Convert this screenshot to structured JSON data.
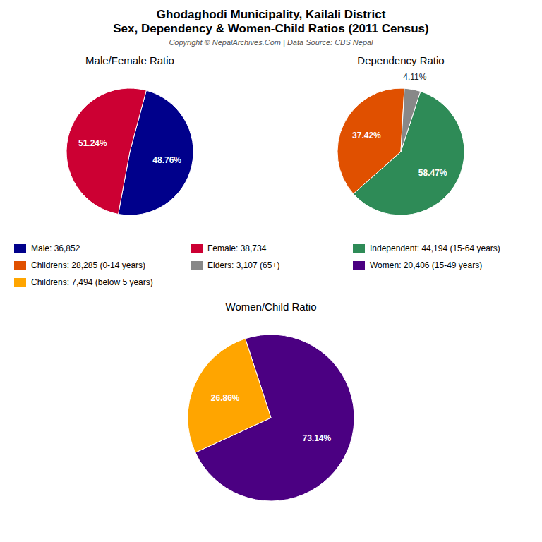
{
  "title": "Ghodaghodi Municipality, Kailali District",
  "subtitle": "Sex, Dependency & Women-Child Ratios (2011 Census)",
  "annotations": [
    "Copyright © NepalArchives.Com | Data Source: CBS Nepal"
  ],
  "chart_data": [
    {
      "type": "pie",
      "title": "Male/Female Ratio",
      "categories": [
        "Male: 36,852",
        "Female: 38,734"
      ],
      "values": [
        48.76,
        51.24
      ],
      "value_labels": [
        "48.76%",
        "51.24%"
      ],
      "colors": [
        "#00008B",
        "#CC0033"
      ],
      "data_labels": true,
      "legend": "bottom"
    },
    {
      "type": "pie",
      "title": "Dependency Ratio",
      "categories": [
        "Independent: 44,194 (15-64 years)",
        "Childrens: 28,285 (0-14 years)",
        "Elders: 3,107 (65+)"
      ],
      "values": [
        58.47,
        37.42,
        4.11
      ],
      "value_labels": [
        "58.47%",
        "37.42%",
        "4.11%"
      ],
      "colors": [
        "#2E8B57",
        "#E05000",
        "#888888"
      ],
      "data_labels": true,
      "legend": "bottom"
    },
    {
      "type": "pie",
      "title": "Women/Child Ratio",
      "categories": [
        "Women: 20,406 (15-49 years)",
        "Childrens: 7,494 (below 5 years)"
      ],
      "values": [
        73.14,
        26.86
      ],
      "value_labels": [
        "73.14%",
        "26.86%"
      ],
      "colors": [
        "#4B0082",
        "#FFA500"
      ],
      "data_labels": true,
      "legend": "top"
    }
  ]
}
